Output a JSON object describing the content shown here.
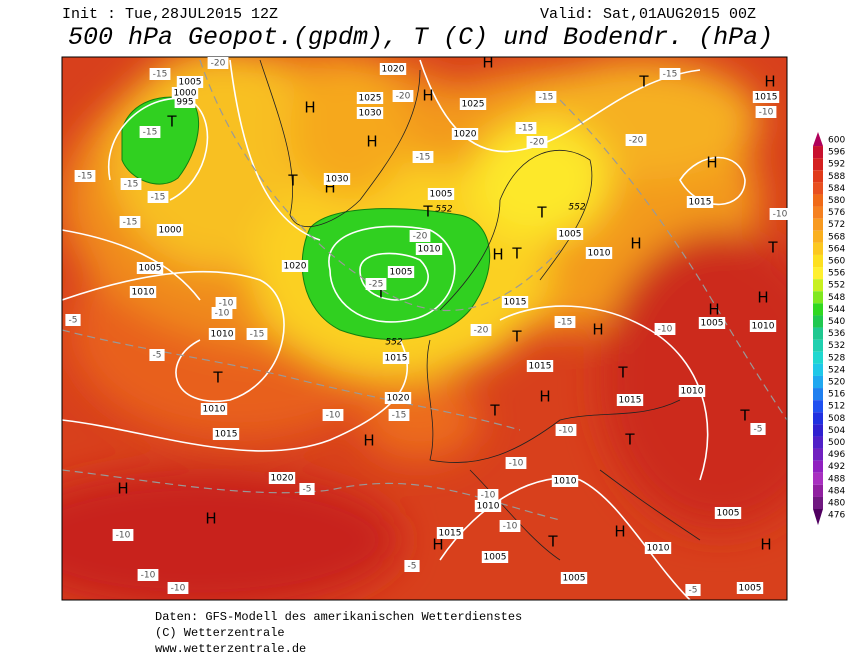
{
  "header": {
    "init": "Init : Tue,28JUL2015 12Z",
    "valid": "Valid: Sat,01AUG2015 00Z",
    "title": "500 hPa Geopot.(gpdm), T (C) und Bodendr. (hPa)"
  },
  "colorbar": {
    "ticks": [
      600,
      596,
      592,
      588,
      584,
      580,
      576,
      572,
      568,
      564,
      560,
      556,
      552,
      548,
      544,
      540,
      536,
      532,
      528,
      524,
      520,
      516,
      512,
      508,
      504,
      500,
      496,
      492,
      488,
      484,
      480,
      476
    ],
    "colors": [
      "#b0005a",
      "#c8102e",
      "#d42020",
      "#e03a1a",
      "#e85020",
      "#f06a18",
      "#f58020",
      "#f89a20",
      "#fab020",
      "#fcc820",
      "#fde020",
      "#fff030",
      "#c8f020",
      "#80e820",
      "#30d820",
      "#20c850",
      "#20c890",
      "#20d0b0",
      "#20d8d0",
      "#20c8e8",
      "#20a8f0",
      "#2080f0",
      "#2050f0",
      "#2030e0",
      "#3020d0",
      "#5020c8",
      "#7020c0",
      "#9020c0",
      "#a830c0",
      "#9020a0",
      "#701880",
      "#500060"
    ]
  },
  "map": {
    "centers": [
      "H",
      "H",
      "H",
      "H",
      "H",
      "H",
      "H",
      "H",
      "H",
      "H",
      "H",
      "H",
      "H",
      "H",
      "H",
      "H",
      "H",
      "H",
      "H",
      "T",
      "T",
      "T",
      "T",
      "T",
      "T",
      "T",
      "T",
      "T",
      "T",
      "T",
      "T",
      "T",
      "T",
      "T"
    ],
    "pressure_labels": [
      1005,
      1000,
      995,
      1020,
      1025,
      1030,
      1025,
      1020,
      1030,
      1005,
      1000,
      1005,
      1010,
      1020,
      1010,
      1005,
      1015,
      1005,
      1010,
      1010,
      1015,
      1010,
      1015,
      1020,
      1020,
      1015,
      1015,
      1010,
      1010,
      1005,
      1010,
      1010,
      1015,
      1005,
      1005,
      1010,
      1005,
      1005,
      1015,
      1015
    ],
    "temperature_labels": [
      -15,
      -15,
      -15,
      -15,
      -15,
      -15,
      -20,
      -20,
      -15,
      -15,
      -15,
      -20,
      -20,
      -15,
      -10,
      -20,
      -25,
      -20,
      -15,
      -10,
      -10,
      -15,
      -5,
      -5,
      -10,
      -15,
      -10,
      -10,
      -10,
      -5,
      -10,
      -10,
      -10,
      -10,
      -10,
      -5,
      -5,
      -5,
      -10
    ],
    "contour_labels": [
      552,
      552,
      552
    ]
  },
  "footer": {
    "lines": [
      "Daten: GFS-Modell des amerikanischen Wetterdienstes",
      "(C) Wetterzentrale",
      "www.wetterzentrale.de"
    ]
  }
}
